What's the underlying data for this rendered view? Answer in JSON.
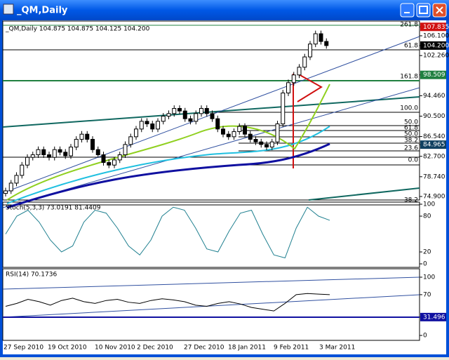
{
  "window": {
    "title": "_QM,Daily"
  },
  "main": {
    "header": "_QM,Daily  104.875 104.875 104.125 104.200",
    "closes": [
      76,
      77.5,
      79,
      81,
      82.5,
      83,
      84,
      83,
      82.5,
      84,
      83.5,
      82.8,
      84.5,
      86,
      87,
      86,
      84,
      83,
      81.5,
      81,
      82,
      83,
      85,
      86.5,
      88,
      89.5,
      89,
      88,
      89.5,
      90.5,
      91,
      92,
      91.5,
      90,
      89.5,
      91,
      92,
      91,
      90,
      88,
      87,
      86.5,
      87.5,
      88.5,
      87,
      86,
      85.5,
      85,
      84.5,
      85.5,
      89,
      95,
      97,
      98.5,
      100,
      102,
      104.5,
      106.5,
      105,
      104.2
    ],
    "price_axis": [
      {
        "value": 107.835,
        "label": "107.835"
      },
      {
        "value": 106.1,
        "label": "106.100"
      },
      {
        "value": 104.2,
        "label": "104.200"
      },
      {
        "value": 102.26,
        "label": "102.260"
      },
      {
        "value": 98.509,
        "label": "98.509"
      },
      {
        "value": 94.46,
        "label": "94.460"
      },
      {
        "value": 90.5,
        "label": "90.500"
      },
      {
        "value": 86.54,
        "label": "86.540"
      },
      {
        "value": 84.965,
        "label": "84.965"
      },
      {
        "value": 82.7,
        "label": "82.700"
      },
      {
        "value": 78.74,
        "label": "78.740"
      },
      {
        "value": 74.9,
        "label": "74.900"
      }
    ],
    "fib_labels": [
      "261.8",
      "61.8",
      "161.8",
      "100.0",
      "50.0",
      "61.8",
      "50.0",
      "38.2",
      "23.6",
      "0.0",
      "38.2"
    ]
  },
  "stoch": {
    "header": "Stoch(5,3,3) 73.0191 81.4409",
    "values": [
      50,
      80,
      90,
      70,
      40,
      20,
      30,
      70,
      90,
      85,
      60,
      30,
      15,
      40,
      80,
      95,
      90,
      60,
      25,
      20,
      55,
      85,
      90,
      50,
      15,
      10,
      60,
      95,
      80,
      73
    ],
    "ticks": [
      100,
      80,
      20,
      0
    ]
  },
  "rsi": {
    "header": "RSI(14) 70.1736",
    "values": [
      50,
      55,
      62,
      58,
      52,
      60,
      64,
      58,
      55,
      60,
      62,
      57,
      55,
      60,
      63,
      61,
      58,
      52,
      50,
      55,
      58,
      54,
      48,
      45,
      42,
      55,
      70,
      72,
      71,
      70
    ],
    "ticks": [
      100,
      70,
      {
        "value": 31.496,
        "label": "31.496"
      },
      0
    ]
  },
  "dates": [
    "27 Sep 2010",
    "19 Oct 2010",
    "10 Nov 2010",
    "2 Dec 2010",
    "27 Dec 2010",
    "18 Jan 2011",
    "9 Feb 2011",
    "3 Mar 2011"
  ]
}
